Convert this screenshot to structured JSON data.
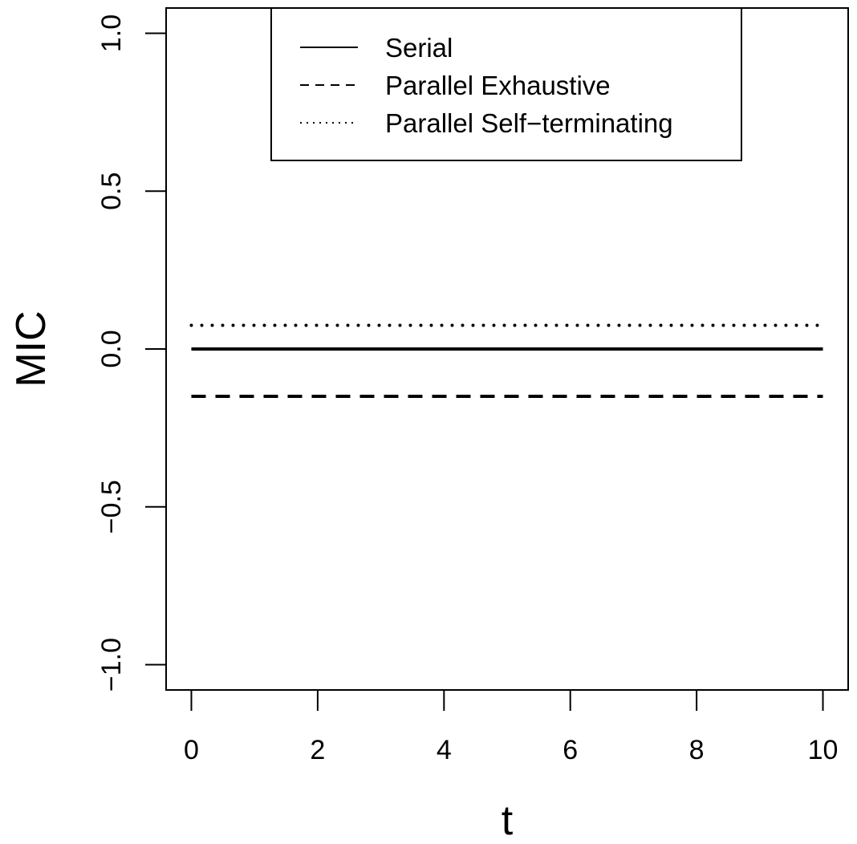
{
  "chart_data": {
    "type": "line",
    "xlabel": "t",
    "ylabel": "MIC",
    "xlim": [
      -0.4,
      10.4
    ],
    "ylim": [
      -1.08,
      1.08
    ],
    "x_ticks": [
      0,
      2,
      4,
      6,
      8,
      10
    ],
    "x_tick_labels": [
      "0",
      "2",
      "4",
      "6",
      "8",
      "10"
    ],
    "y_ticks": [
      -1.0,
      -0.5,
      0.0,
      0.5,
      1.0
    ],
    "y_tick_labels": [
      "−1.0",
      "−0.5",
      "0.0",
      "0.5",
      "1.0"
    ],
    "grid": false,
    "legend_position": "top-center",
    "series": [
      {
        "name": "Serial",
        "line_style": "solid",
        "x": [
          0,
          10
        ],
        "y": [
          0.0,
          0.0
        ]
      },
      {
        "name": "Parallel Exhaustive",
        "line_style": "dashed",
        "x": [
          0,
          10
        ],
        "y": [
          -0.15,
          -0.15
        ]
      },
      {
        "name": "Parallel Self−terminating",
        "line_style": "dotted",
        "x": [
          0,
          10
        ],
        "y": [
          0.075,
          0.075
        ]
      }
    ],
    "line_color": "#000000"
  }
}
